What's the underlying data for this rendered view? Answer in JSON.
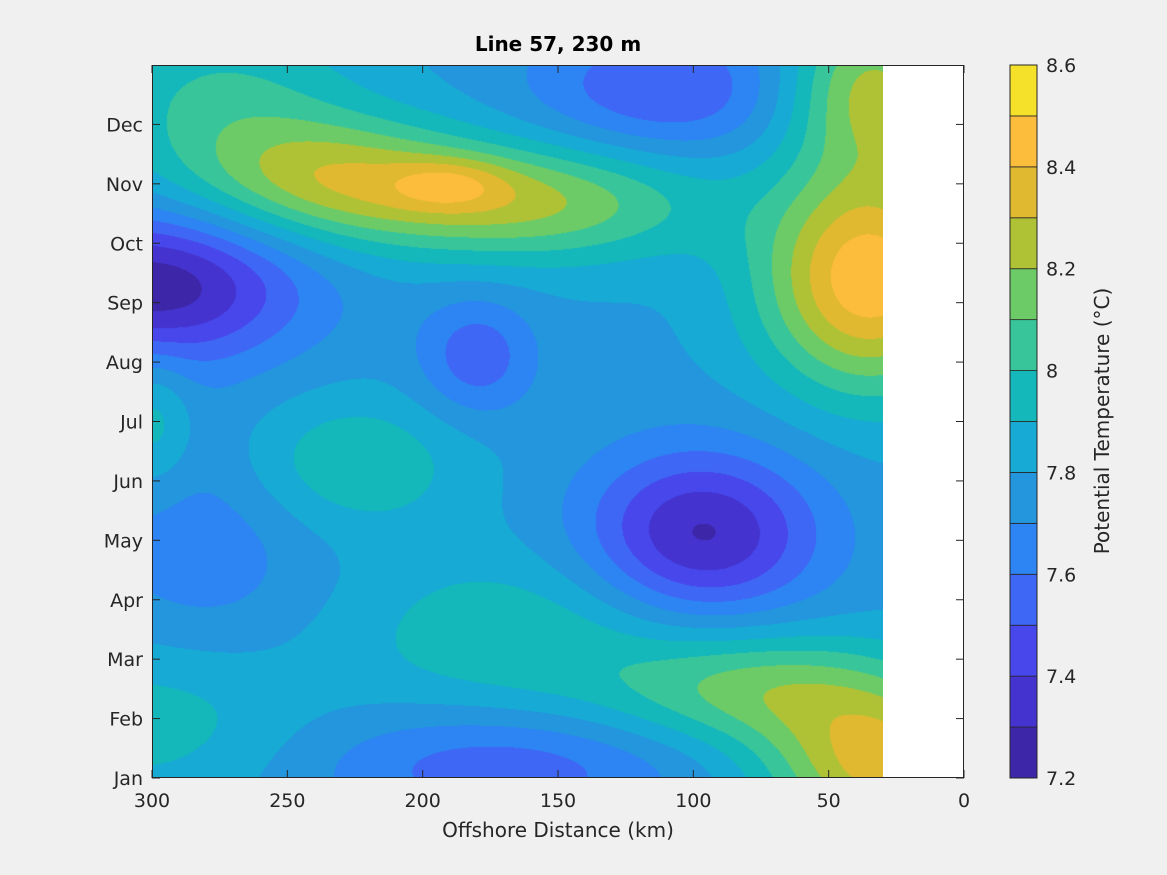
{
  "chart_data": {
    "type": "heatmap",
    "subtype": "filled-contour",
    "title": "Line 57, 230 m",
    "xlabel": "Offshore Distance (km)",
    "ylabel": "",
    "colorbar_label": "Potential Temperature (°C)",
    "xlim": [
      300,
      0
    ],
    "x_ticks": [
      300,
      250,
      200,
      150,
      100,
      50,
      0
    ],
    "ylim": [
      1,
      13
    ],
    "y_ticks": [
      1,
      2,
      3,
      4,
      5,
      6,
      7,
      8,
      9,
      10,
      11,
      12
    ],
    "y_tick_labels": [
      "Jan",
      "Feb",
      "Mar",
      "Apr",
      "May",
      "Jun",
      "Jul",
      "Aug",
      "Sep",
      "Oct",
      "Nov",
      "Dec"
    ],
    "data_x_range_km": [
      300,
      30
    ],
    "clim": [
      7.2,
      8.6
    ],
    "colorbar_ticks": [
      "7.2",
      "7.4",
      "7.6",
      "7.8",
      "8",
      "8.2",
      "8.4",
      "8.6"
    ],
    "contour_levels": [
      7.2,
      7.3,
      7.4,
      7.5,
      7.6,
      7.7,
      7.8,
      7.9,
      8.0,
      8.1,
      8.2,
      8.3,
      8.4,
      8.5,
      8.6
    ],
    "level_colors": [
      "#3e26a8",
      "#4433ce",
      "#4747eb",
      "#3f67f5",
      "#2c85f2",
      "#2496dd",
      "#17aad5",
      "#14b8ba",
      "#38c59a",
      "#6ccb67",
      "#afc236",
      "#e0b930",
      "#fdbd3c",
      "#f5e12a"
    ],
    "field_model": {
      "base": 7.78,
      "features": [
        {
          "km": 235,
          "month": 11.1,
          "amp": 0.42,
          "skm": 38,
          "smon": 0.75
        },
        {
          "km": 160,
          "month": 10.7,
          "amp": 0.42,
          "skm": 45,
          "smon": 0.7
        },
        {
          "km": 190,
          "month": 11.0,
          "amp": 0.18,
          "skm": 15,
          "smon": 0.3
        },
        {
          "km": 35,
          "month": 9.4,
          "amp": 0.7,
          "skm": 28,
          "smon": 1.3
        },
        {
          "km": 35,
          "month": 12.6,
          "amp": 0.45,
          "skm": 22,
          "smon": 1.0
        },
        {
          "km": 30,
          "month": 1.2,
          "amp": 0.55,
          "skm": 30,
          "smon": 0.9
        },
        {
          "km": 75,
          "month": 2.5,
          "amp": 0.35,
          "skm": 40,
          "smon": 0.7
        },
        {
          "km": 300,
          "month": 9.3,
          "amp": -0.55,
          "skm": 38,
          "smon": 0.9
        },
        {
          "km": 97,
          "month": 5.1,
          "amp": -0.5,
          "skm": 30,
          "smon": 1.0
        },
        {
          "km": 110,
          "month": 12.6,
          "amp": -0.28,
          "skm": 35,
          "smon": 0.8
        },
        {
          "km": 180,
          "month": 8.1,
          "amp": -0.25,
          "skm": 15,
          "smon": 0.7
        },
        {
          "km": 228,
          "month": 6.3,
          "amp": 0.22,
          "skm": 30,
          "smon": 0.8
        },
        {
          "km": 165,
          "month": 3.4,
          "amp": 0.2,
          "skm": 45,
          "smon": 1.0
        },
        {
          "km": 170,
          "month": 1.2,
          "amp": -0.25,
          "skm": 50,
          "smon": 0.7
        },
        {
          "km": 280,
          "month": 5.0,
          "amp": -0.15,
          "skm": 30,
          "smon": 1.5
        },
        {
          "km": 275,
          "month": 12.5,
          "amp": 0.22,
          "skm": 35,
          "smon": 1.0
        },
        {
          "km": 300,
          "month": 7.0,
          "amp": 0.2,
          "skm": 10,
          "smon": 0.8
        },
        {
          "km": 300,
          "month": 2.0,
          "amp": 0.18,
          "skm": 40,
          "smon": 1.0
        }
      ]
    }
  }
}
